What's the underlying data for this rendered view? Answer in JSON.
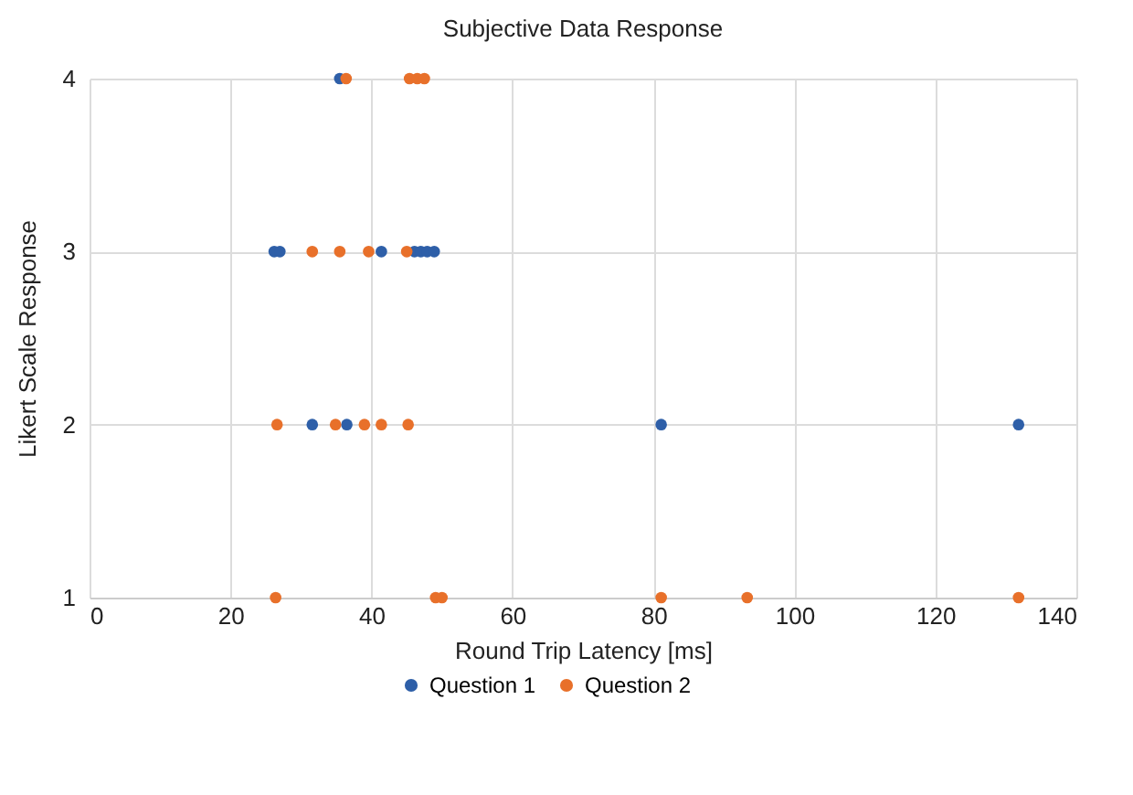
{
  "chart_data": {
    "type": "scatter",
    "title": "Subjective Data Response",
    "xlabel": "Round Trip Latency [ms]",
    "ylabel": "Likert Scale Response",
    "xlim": [
      0,
      140
    ],
    "xticks": [
      0,
      20,
      40,
      60,
      80,
      100,
      120,
      140
    ],
    "ylim": [
      1,
      4
    ],
    "yticks": [
      1,
      2,
      3,
      4
    ],
    "grid": true,
    "legend": "bottom",
    "marker": "circle",
    "series": [
      {
        "name": "Question 1",
        "color": "#2e5fa8",
        "x": [
          35.5,
          26.2,
          27,
          41.4,
          46.1,
          47,
          47.9,
          48.9,
          31.6,
          36.5,
          81.1,
          131.8
        ],
        "values": [
          4,
          3,
          3,
          3,
          3,
          3,
          3,
          3,
          2,
          2,
          2,
          2
        ]
      },
      {
        "name": "Question 2",
        "color": "#e8702a",
        "x": [
          36.4,
          45.4,
          46.5,
          47.5,
          31.6,
          35.5,
          39.6,
          45,
          26.6,
          34.9,
          39,
          41.4,
          45.2,
          26.4,
          49.1,
          50,
          81.1,
          93.3,
          131.8
        ],
        "values": [
          4,
          4,
          4,
          4,
          3,
          3,
          3,
          3,
          2,
          2,
          2,
          2,
          2,
          1,
          1,
          1,
          1,
          1,
          1
        ]
      }
    ]
  }
}
